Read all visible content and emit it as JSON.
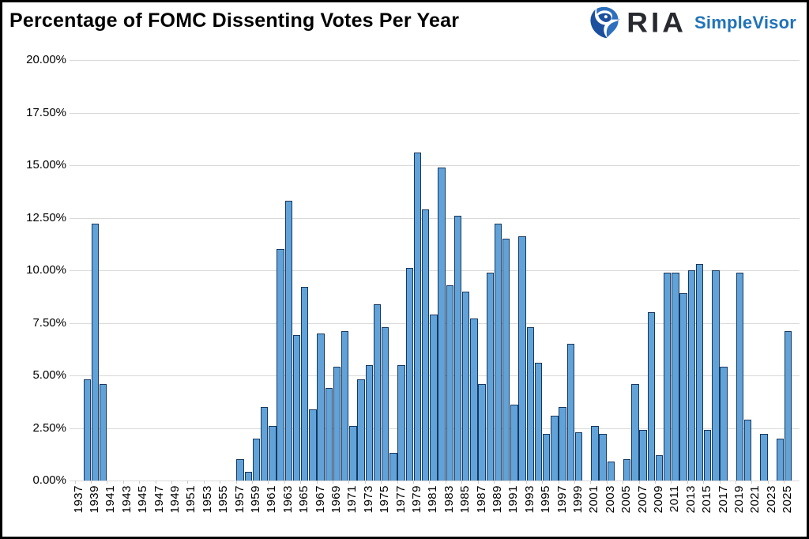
{
  "header": {
    "title": "Percentage of FOMC Dissenting Votes Per Year",
    "logo": {
      "brand": "RIA",
      "product": "SimpleVisor"
    }
  },
  "colors": {
    "bar_fill": "#61a3d8",
    "bar_border": "#17375e",
    "gridline": "#d9d9d9",
    "logo_blue": "#2173b8",
    "logo_dark": "#27292e"
  },
  "chart_data": {
    "type": "bar",
    "title": "Percentage of FOMC Dissenting Votes Per Year",
    "ylabel": "",
    "xlabel": "",
    "ylim": [
      0,
      20
    ],
    "ytick_step": 2.5,
    "grid": "horizontal",
    "legend": "none",
    "ytick_labels": [
      "20.00%",
      "17.50%",
      "15.00%",
      "12.50%",
      "10.00%",
      "7.50%",
      "5.00%",
      "2.50%",
      "0.00%"
    ],
    "xtick_labels": [
      "1937",
      "1939",
      "1941",
      "1943",
      "1945",
      "1947",
      "1949",
      "1951",
      "1953",
      "1955",
      "1957",
      "1959",
      "1961",
      "1963",
      "1965",
      "1967",
      "1969",
      "1971",
      "1973",
      "1975",
      "1977",
      "1979",
      "1981",
      "1983",
      "1985",
      "1987",
      "1989",
      "1991",
      "1993",
      "1995",
      "1997",
      "1999",
      "2001",
      "2003",
      "2005",
      "2007",
      "2009",
      "2011",
      "2013",
      "2015",
      "2017",
      "2019",
      "2021",
      "2023",
      "2025"
    ],
    "years": [
      1937,
      1938,
      1939,
      1940,
      1941,
      1942,
      1943,
      1944,
      1945,
      1946,
      1947,
      1948,
      1949,
      1950,
      1951,
      1952,
      1953,
      1954,
      1955,
      1956,
      1957,
      1958,
      1959,
      1960,
      1961,
      1962,
      1963,
      1964,
      1965,
      1966,
      1967,
      1968,
      1969,
      1970,
      1971,
      1972,
      1973,
      1974,
      1975,
      1976,
      1977,
      1978,
      1979,
      1980,
      1981,
      1982,
      1983,
      1984,
      1985,
      1986,
      1987,
      1988,
      1989,
      1990,
      1991,
      1992,
      1993,
      1994,
      1995,
      1996,
      1997,
      1998,
      1999,
      2000,
      2001,
      2002,
      2003,
      2004,
      2005,
      2006,
      2007,
      2008,
      2009,
      2010,
      2011,
      2012,
      2013,
      2014,
      2015,
      2016,
      2017,
      2018,
      2019,
      2020,
      2021,
      2022,
      2023,
      2024,
      2025
    ],
    "values": [
      0,
      4.8,
      12.2,
      4.6,
      0,
      0,
      0,
      0,
      0,
      0,
      0,
      0,
      0,
      0,
      0,
      0,
      0,
      0,
      0,
      0,
      1.0,
      0.4,
      2.0,
      3.5,
      2.6,
      11.0,
      13.3,
      6.9,
      9.2,
      3.4,
      7.0,
      4.4,
      5.4,
      7.1,
      2.6,
      4.8,
      5.5,
      8.4,
      7.3,
      1.3,
      5.5,
      10.1,
      15.6,
      12.9,
      7.9,
      14.9,
      9.3,
      12.6,
      9.0,
      7.7,
      4.6,
      9.9,
      12.2,
      11.5,
      3.6,
      11.6,
      7.3,
      5.6,
      2.2,
      3.1,
      3.5,
      6.5,
      2.3,
      0,
      2.6,
      2.2,
      0.9,
      0,
      1.0,
      4.6,
      2.4,
      8.0,
      1.2,
      9.9,
      9.9,
      8.9,
      10.0,
      10.3,
      2.4,
      10.0,
      5.4,
      0,
      9.9,
      2.9,
      0,
      2.2,
      0,
      2.0,
      7.1
    ]
  }
}
